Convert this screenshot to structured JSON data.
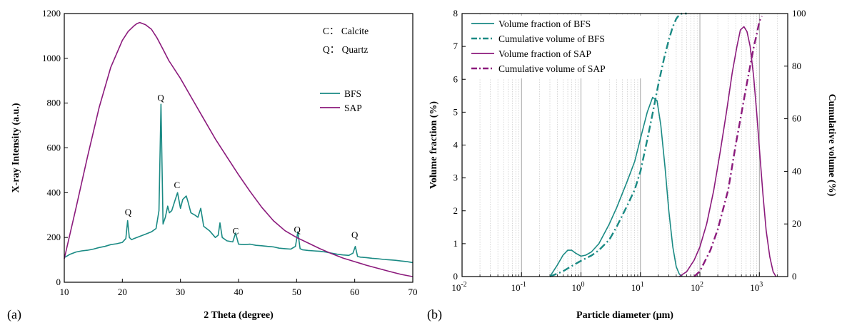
{
  "colors": {
    "bfs": "#1a8a84",
    "sap": "#8b1a7c"
  },
  "chart_data": [
    {
      "panel_label": "(a)",
      "type": "line",
      "xlabel": "2 Theta (degree)",
      "ylabel": "X-ray Intensity (a.u.)",
      "xlim": [
        10,
        70
      ],
      "ylim": [
        0,
        1200
      ],
      "xticks": [
        "10",
        "20",
        "30",
        "40",
        "50",
        "60",
        "70"
      ],
      "yticks": [
        "0",
        "200",
        "400",
        "600",
        "800",
        "1000",
        "1200"
      ],
      "legend_position": "top-right",
      "phase_key": [
        "C： Calcite",
        "Q： Quartz"
      ],
      "annotations": [
        {
          "text": "Q",
          "x": 21.0,
          "y": 300
        },
        {
          "text": "Q",
          "x": 26.6,
          "y": 810
        },
        {
          "text": "C",
          "x": 29.4,
          "y": 420
        },
        {
          "text": "C",
          "x": 39.5,
          "y": 215
        },
        {
          "text": "Q",
          "x": 50.1,
          "y": 222
        },
        {
          "text": "Q",
          "x": 60.0,
          "y": 198
        }
      ],
      "series": [
        {
          "name": "BFS",
          "x": [
            10,
            11,
            12,
            13,
            14,
            15,
            16,
            17,
            18,
            19,
            20,
            20.6,
            20.9,
            21.2,
            21.6,
            22,
            23,
            24,
            25,
            25.8,
            26.3,
            26.65,
            27,
            27.4,
            27.8,
            28.1,
            28.5,
            29,
            29.5,
            30,
            30.4,
            31,
            31.3,
            31.8,
            32.5,
            33,
            33.5,
            34,
            35,
            36,
            36.5,
            36.8,
            37.2,
            38,
            39,
            39.5,
            40,
            41,
            42,
            43,
            44,
            45,
            46,
            47,
            48,
            49,
            49.8,
            50.2,
            50.6,
            51,
            52,
            53,
            54,
            55,
            56,
            57,
            58,
            59,
            59.7,
            60.1,
            60.5,
            61,
            62,
            63,
            64,
            65,
            66,
            67,
            68,
            69,
            70
          ],
          "y": [
            110,
            125,
            135,
            140,
            143,
            148,
            155,
            160,
            168,
            172,
            178,
            195,
            275,
            200,
            190,
            195,
            205,
            215,
            225,
            240,
            320,
            795,
            260,
            290,
            340,
            310,
            320,
            360,
            400,
            330,
            370,
            385,
            360,
            310,
            300,
            290,
            330,
            250,
            230,
            200,
            210,
            265,
            200,
            185,
            180,
            220,
            170,
            168,
            170,
            165,
            163,
            160,
            158,
            152,
            150,
            148,
            160,
            225,
            150,
            145,
            142,
            140,
            138,
            135,
            130,
            125,
            122,
            120,
            130,
            160,
            115,
            112,
            110,
            107,
            105,
            102,
            100,
            98,
            95,
            92,
            88
          ]
        },
        {
          "name": "SAP",
          "x": [
            10,
            12,
            14,
            16,
            18,
            20,
            21,
            22,
            22.5,
            23,
            23.5,
            24,
            24.5,
            25,
            26,
            27,
            28,
            30,
            32,
            34,
            36,
            38,
            40,
            42,
            44,
            46,
            48,
            50,
            52,
            54,
            56,
            58,
            60,
            62,
            64,
            66,
            68,
            70
          ],
          "y": [
            105,
            330,
            560,
            780,
            960,
            1080,
            1120,
            1145,
            1155,
            1160,
            1155,
            1150,
            1140,
            1130,
            1090,
            1040,
            990,
            910,
            820,
            730,
            640,
            560,
            480,
            405,
            335,
            275,
            230,
            200,
            175,
            150,
            128,
            108,
            92,
            76,
            62,
            48,
            35,
            25
          ]
        }
      ]
    },
    {
      "panel_label": "(b)",
      "type": "line",
      "xlabel": "Particle diameter (μm)",
      "ylabel": "Volume fraction (%)",
      "ylabel_right": "Cumulative volume (%)",
      "x_scale": "log",
      "xlim": [
        0.01,
        3000
      ],
      "ylim": [
        0,
        8
      ],
      "ylim_right": [
        0,
        100
      ],
      "xticks": [
        {
          "base": "10",
          "exp": "-2",
          "value": 0.01
        },
        {
          "base": "10",
          "exp": "-1",
          "value": 0.1
        },
        {
          "base": "10",
          "exp": "0",
          "value": 1
        },
        {
          "base": "10",
          "exp": "1",
          "value": 10
        },
        {
          "base": "10",
          "exp": "2",
          "value": 100
        },
        {
          "base": "10",
          "exp": "3",
          "value": 1000
        }
      ],
      "yticks": [
        "0",
        "1",
        "2",
        "3",
        "4",
        "5",
        "6",
        "7",
        "8"
      ],
      "yticks_right": [
        "0",
        "20",
        "40",
        "60",
        "80",
        "100"
      ],
      "grid": "vertical-log",
      "legend_position": "top-left",
      "series": [
        {
          "name": "Volume fraction of BFS",
          "axis": "left",
          "style": "solid",
          "color_key": "bfs",
          "x": [
            0.3,
            0.4,
            0.5,
            0.6,
            0.7,
            0.8,
            1.0,
            1.2,
            1.5,
            2,
            3,
            4,
            6,
            8,
            10,
            13,
            16,
            19,
            22,
            26,
            30,
            35,
            40,
            45,
            50
          ],
          "y": [
            0,
            0.35,
            0.65,
            0.8,
            0.8,
            0.72,
            0.62,
            0.65,
            0.75,
            1.0,
            1.6,
            2.1,
            2.9,
            3.5,
            4.2,
            5.0,
            5.45,
            5.35,
            4.6,
            3.3,
            2.0,
            0.9,
            0.3,
            0.08,
            0
          ]
        },
        {
          "name": "Cumulative volume of BFS",
          "axis": "right",
          "style": "dashdot",
          "color_key": "bfs",
          "x": [
            0.3,
            0.5,
            0.7,
            1.0,
            1.5,
            2,
            3,
            4,
            6,
            8,
            10,
            13,
            16,
            20,
            25,
            30,
            35,
            40,
            45,
            50,
            60
          ],
          "y": [
            0,
            2,
            4,
            6,
            8,
            10,
            14,
            19,
            27,
            33,
            40,
            52,
            62,
            73,
            83,
            90,
            95,
            98,
            99.5,
            100,
            100
          ]
        },
        {
          "name": "Volume fraction of SAP",
          "axis": "left",
          "style": "solid",
          "color_key": "sap",
          "x": [
            45,
            60,
            80,
            100,
            130,
            170,
            220,
            280,
            350,
            420,
            480,
            550,
            620,
            700,
            800,
            900,
            1000,
            1150,
            1300,
            1500,
            1700,
            1900
          ],
          "y": [
            0,
            0.15,
            0.5,
            0.9,
            1.6,
            2.6,
            3.8,
            5.0,
            6.2,
            7.0,
            7.5,
            7.6,
            7.45,
            7.0,
            6.1,
            5.0,
            3.9,
            2.5,
            1.4,
            0.6,
            0.15,
            0
          ]
        },
        {
          "name": "Cumulative volume of SAP",
          "axis": "right",
          "style": "dashdot",
          "color_key": "sap",
          "x": [
            80,
            100,
            150,
            200,
            300,
            400,
            500,
            600,
            700,
            800,
            900,
            1000,
            1100
          ],
          "y": [
            0,
            2,
            10,
            18,
            33,
            50,
            62,
            72,
            80,
            87,
            92,
            97,
            99
          ]
        }
      ]
    }
  ]
}
